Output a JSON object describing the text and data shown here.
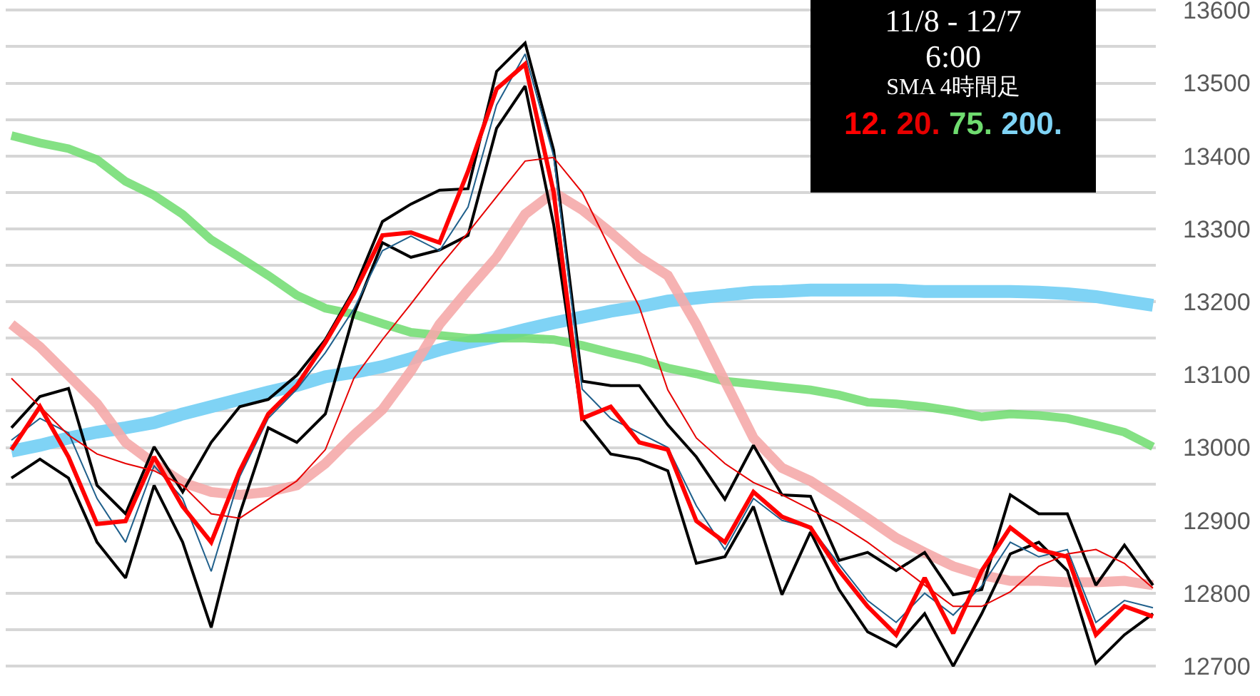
{
  "chart_data": {
    "type": "line",
    "annotations": [
      "11/8 - 12/7",
      "6:00",
      "SMA 4時間足"
    ],
    "categories": [
      null,
      null,
      null,
      null,
      null,
      null,
      null,
      null,
      null,
      null,
      null,
      null,
      null,
      null,
      null,
      null,
      null,
      null,
      null,
      null,
      null,
      null,
      null,
      null,
      null,
      null,
      null,
      null,
      null,
      null,
      null,
      null,
      null,
      null,
      null,
      null,
      null,
      null,
      null,
      null,
      null
    ],
    "ylim": [
      12659,
      13614
    ],
    "yticks": [
      12700,
      {
        "value": 12750,
        "label": null
      },
      12800,
      {
        "value": 12850,
        "label": null
      },
      12900,
      {
        "value": 12950,
        "label": null
      },
      13000,
      {
        "value": 13050,
        "label": null
      },
      13100,
      {
        "value": 13150,
        "label": null
      },
      13200,
      {
        "value": 13250,
        "label": null
      },
      13300,
      {
        "value": 13350,
        "label": null
      },
      13400,
      {
        "value": 13450,
        "label": null
      },
      13500,
      {
        "value": 13550,
        "label": null
      },
      13600
    ],
    "grid": "y",
    "tick_labels": "y",
    "series": [
      {
        "name": "12.",
        "color": "#ff0000",
        "values": [
          12997,
          13056,
          12987,
          12895,
          12899,
          12987,
          12919,
          12870,
          12968,
          13046,
          13085,
          13144,
          13211,
          13291,
          13295,
          13281,
          13379,
          13492,
          13526,
          13350,
          13040,
          13056,
          13007,
          12997,
          12899,
          12870,
          12939,
          12905,
          12890,
          12831,
          12782,
          12743,
          12821,
          12745,
          12831,
          12890,
          12860,
          12850,
          12743,
          12782,
          12768
        ]
      },
      {
        "name": "20.",
        "color": "#e60000",
        "values": [
          13095,
          13056,
          13017,
          12991,
          12978,
          12968,
          12948,
          12909,
          12903,
          12929,
          12954,
          12997,
          13095,
          13148,
          13197,
          13248,
          13295,
          13344,
          13393,
          13398,
          13350,
          13271,
          13193,
          13079,
          13013,
          12978,
          12952,
          12935,
          12915,
          12895,
          12870,
          12841,
          12811,
          12782,
          12782,
          12802,
          12837,
          12854,
          12860,
          12841,
          12807
        ]
      },
      {
        "color": "#1f5f8b",
        "values": [
          13010,
          13040,
          13020,
          12930,
          12870,
          12975,
          12930,
          12830,
          12960,
          13040,
          13080,
          13130,
          13190,
          13270,
          13290,
          13270,
          13330,
          13470,
          13540,
          13400,
          13080,
          13040,
          13020,
          13000,
          12920,
          12860,
          12930,
          12900,
          12890,
          12840,
          12790,
          12760,
          12800,
          12770,
          12810,
          12870,
          12850,
          12860,
          12760,
          12790,
          12780
        ]
      },
      {
        "color": "#000000",
        "values": [
          13027,
          13070,
          13081,
          12948,
          12909,
          13001,
          12939,
          13007,
          13056,
          13066,
          13099,
          13148,
          13216,
          13310,
          13334,
          13353,
          13355,
          13516,
          13555,
          13408,
          13091,
          13085,
          13085,
          13031,
          12987,
          12929,
          13003,
          12935,
          12933,
          12845,
          12856,
          12831,
          12856,
          12798,
          12805,
          12935,
          12909,
          12909,
          12811,
          12866,
          12811
        ]
      },
      {
        "color": "#000000",
        "values": [
          12958,
          12984,
          12958,
          12870,
          12821,
          12948,
          12870,
          12753,
          12909,
          13027,
          13007,
          13046,
          13183,
          13281,
          13261,
          13271,
          13291,
          13438,
          13496,
          13306,
          13040,
          12991,
          12984,
          12968,
          12841,
          12850,
          12919,
          12798,
          12884,
          12805,
          12747,
          12727,
          12772,
          12700,
          12772,
          12854,
          12870,
          12831,
          12704,
          12743,
          12772
        ]
      },
      {
        "color": "#f5aaaa",
        "values": [
          13169,
          13138,
          13099,
          13060,
          13007,
          12978,
          12952,
          12939,
          12935,
          12939,
          12948,
          12978,
          13017,
          13052,
          13105,
          13169,
          13216,
          13261,
          13320,
          13350,
          13326,
          13295,
          13261,
          13236,
          13169,
          13091,
          13013,
          12972,
          12954,
          12929,
          12903,
          12876,
          12856,
          12837,
          12825,
          12817,
          12817,
          12815,
          12815,
          12817,
          12811
        ]
      },
      {
        "name": "75.",
        "color": "#6fdc6f",
        "values": [
          13428,
          13418,
          13410,
          13395,
          13365,
          13346,
          13320,
          13285,
          13261,
          13236,
          13209,
          13191,
          13183,
          13170,
          13158,
          13154,
          13150,
          13150,
          13150,
          13148,
          13140,
          13130,
          13121,
          13109,
          13101,
          13091,
          13087,
          13083,
          13079,
          13072,
          13062,
          13060,
          13056,
          13050,
          13042,
          13046,
          13044,
          13040,
          13031,
          13021,
          13001
        ]
      },
      {
        "name": "200.",
        "color": "#7fd3f5",
        "values": [
          12995,
          13003,
          13013,
          13021,
          13027,
          13034,
          13046,
          13056,
          13066,
          13076,
          13085,
          13097,
          13103,
          13111,
          13122,
          13134,
          13144,
          13152,
          13162,
          13171,
          13179,
          13187,
          13193,
          13201,
          13205,
          13209,
          13213,
          13214,
          13216,
          13216,
          13216,
          13216,
          13214,
          13214,
          13214,
          13214,
          13213,
          13211,
          13207,
          13201,
          13195
        ]
      }
    ]
  }
}
